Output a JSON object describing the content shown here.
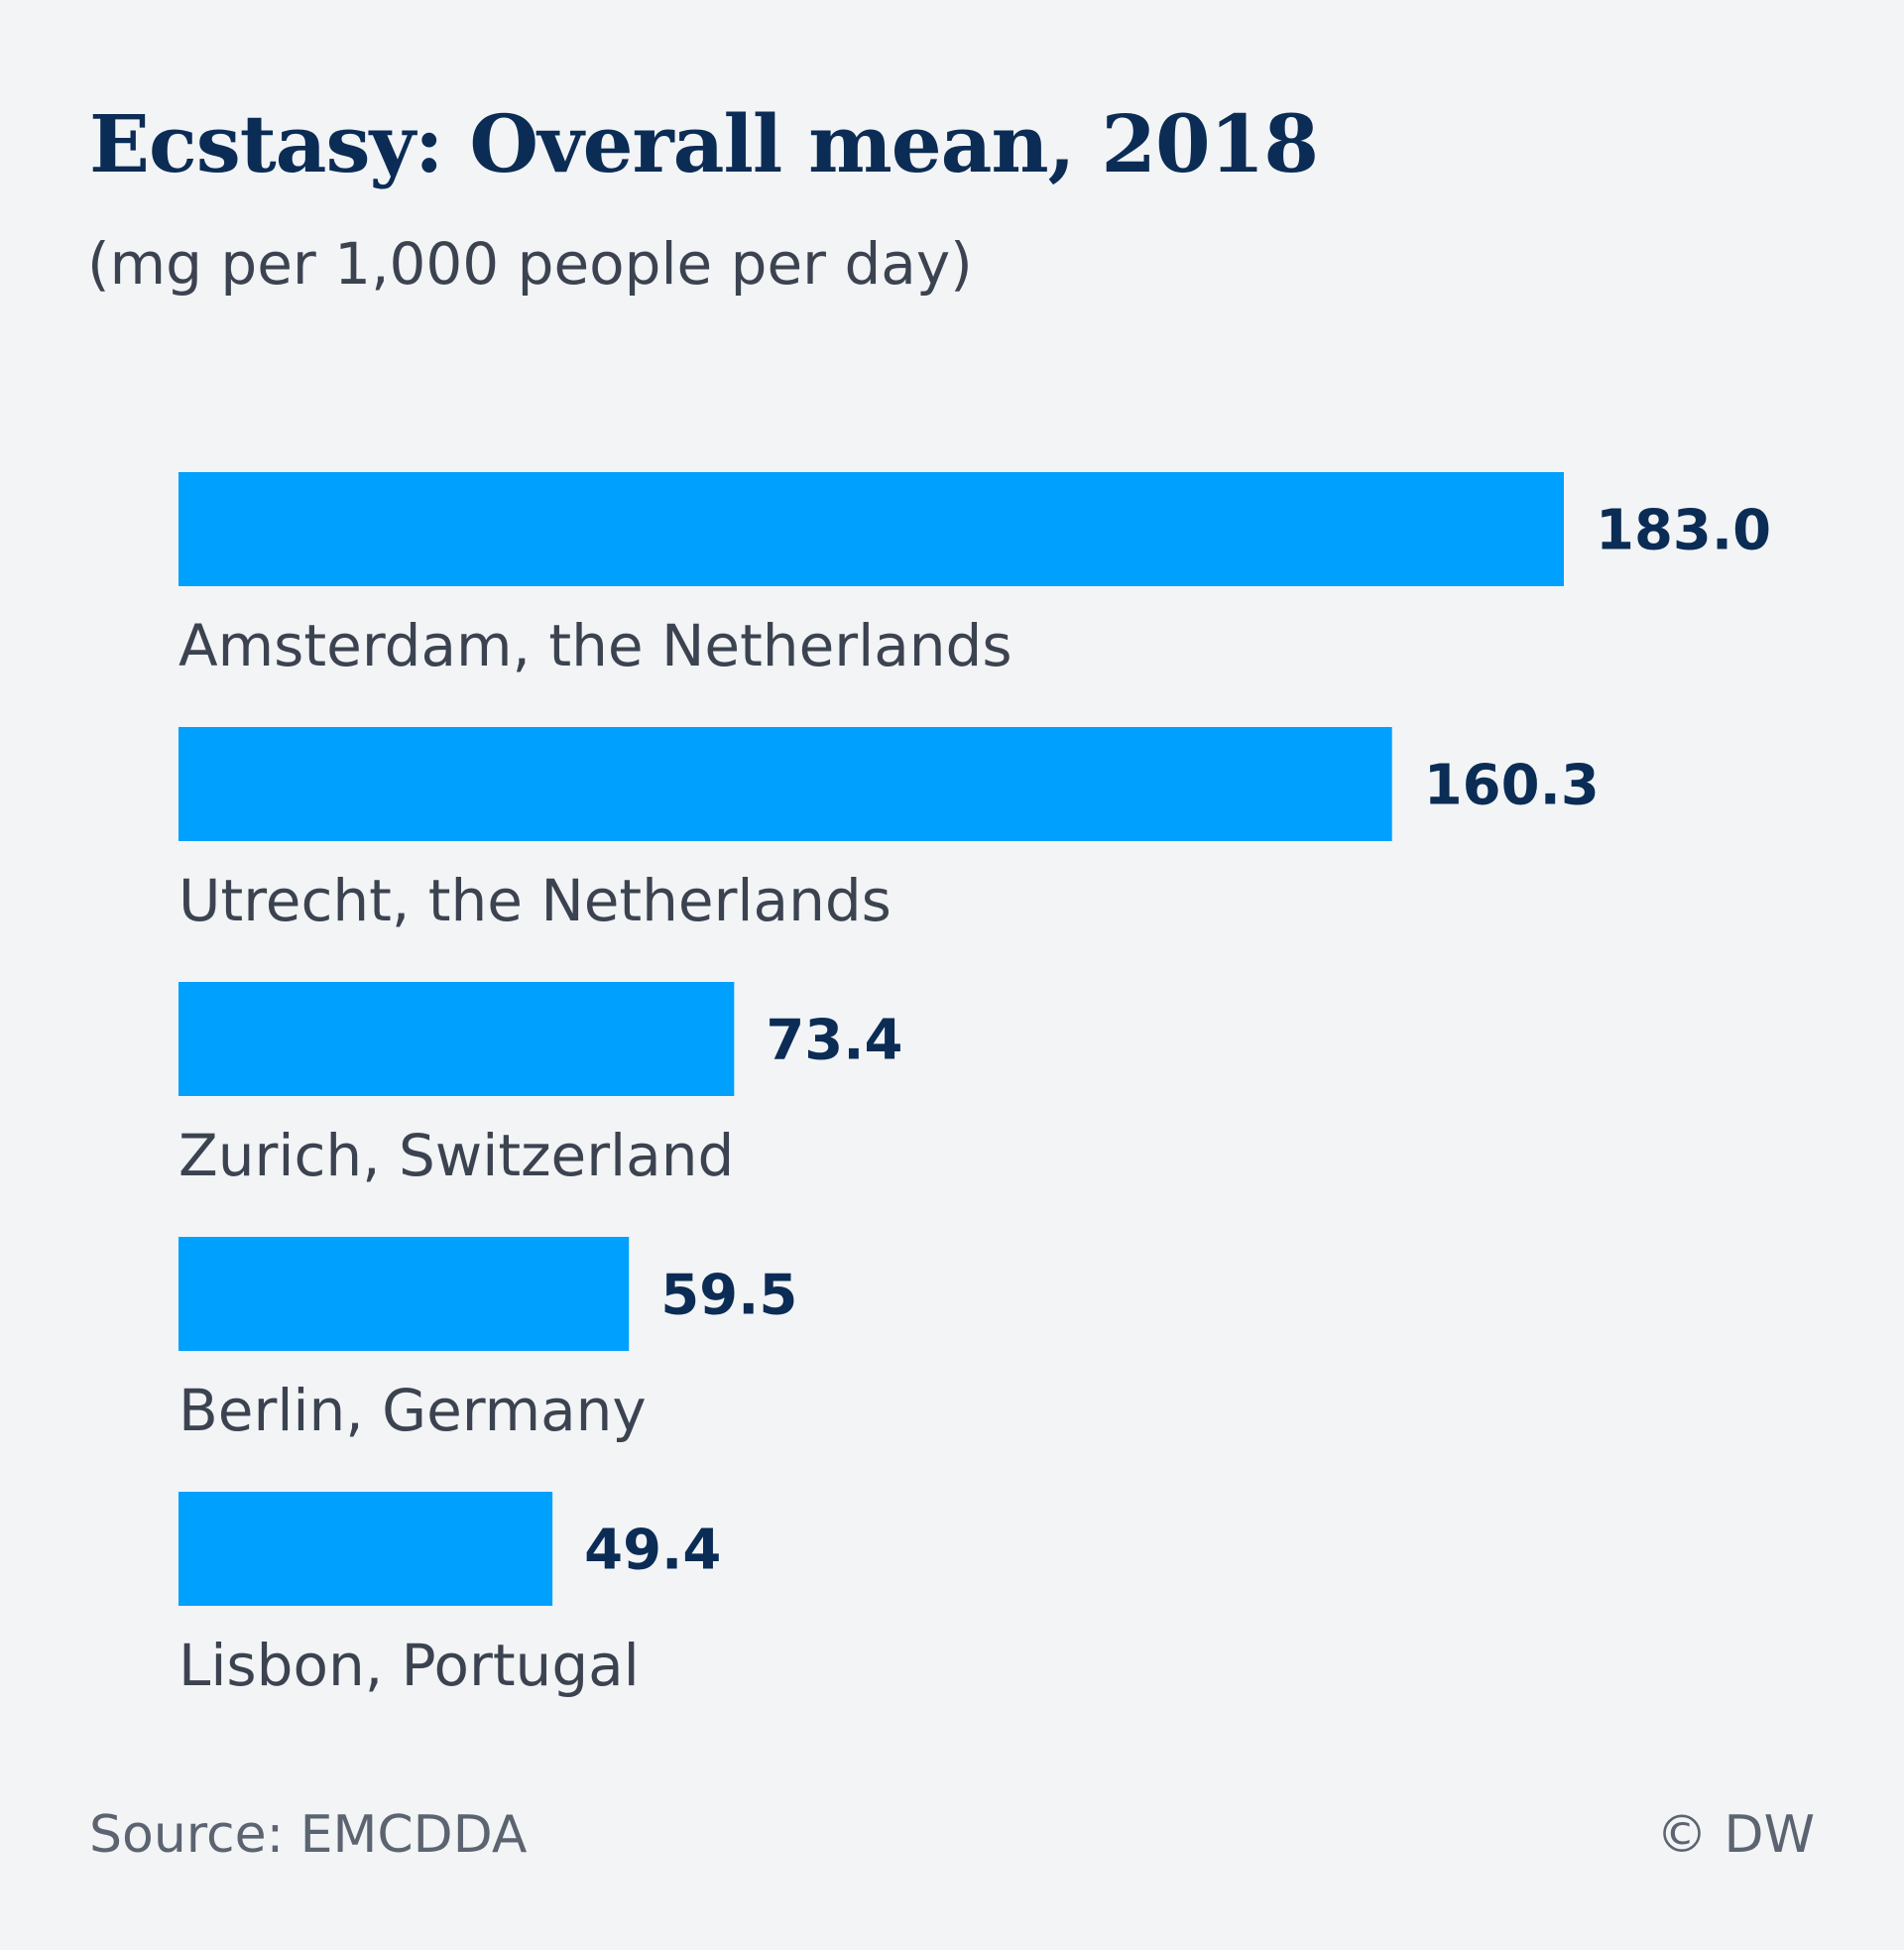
{
  "chart_data": {
    "type": "bar",
    "orientation": "horizontal",
    "title": "Ecstasy: Overall mean, 2018",
    "subtitle": "(mg per 1,000 people per day)",
    "categories": [
      "Amsterdam, the Netherlands",
      "Utrecht, the Netherlands",
      "Zurich, Switzerland",
      "Berlin, Germany",
      "Lisbon, Portugal"
    ],
    "values": [
      183.0,
      160.3,
      73.4,
      59.5,
      49.4
    ],
    "value_labels": [
      "183.0",
      "160.3",
      "73.4",
      "59.5",
      "49.4"
    ],
    "xlim": [
      0,
      183.0
    ],
    "grid": false,
    "colors": {
      "bar": "#00a0ff",
      "value_label": "#0b2c55",
      "category_label": "#3c4350"
    }
  },
  "footer": {
    "source": "Source: EMCDDA",
    "credit": "© DW"
  }
}
